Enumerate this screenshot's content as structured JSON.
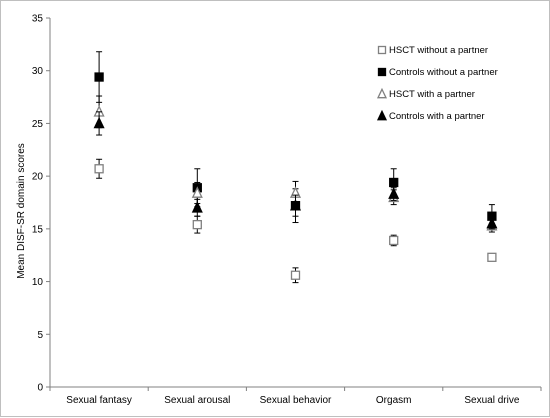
{
  "chart_data": {
    "type": "scatter",
    "title": "",
    "xlabel": "",
    "ylabel": "Mean DISF-SR domain scores",
    "ylim": [
      0,
      35
    ],
    "yticks": [
      "0",
      "5",
      "10",
      "15",
      "20",
      "25",
      "30",
      "35"
    ],
    "categories": [
      "Sexual fantasy",
      "Sexual arousal",
      "Sexual behavior",
      "Orgasm",
      "Sexual drive"
    ],
    "grid": false,
    "legend_position": "top-right",
    "series": [
      {
        "name": "HSCT without a partner",
        "marker": "open-square",
        "color": "#000000",
        "values": [
          20.7,
          15.4,
          10.6,
          13.9,
          12.3
        ],
        "errors": [
          0.9,
          0.8,
          0.7,
          0.5,
          0.3
        ]
      },
      {
        "name": "Controls without a partner",
        "marker": "filled-square",
        "color": "#000000",
        "values": [
          29.4,
          18.9,
          17.2,
          19.4,
          16.2
        ],
        "errors": [
          2.4,
          1.8,
          1.6,
          1.3,
          1.1
        ]
      },
      {
        "name": "HSCT with a partner",
        "marker": "open-triangle",
        "color": "#000000",
        "values": [
          26.1,
          18.4,
          18.4,
          18.0,
          15.3
        ],
        "errors": [
          1.5,
          1.0,
          1.1,
          0.7,
          0.6
        ]
      },
      {
        "name": "Controls with a partner",
        "marker": "filled-triangle",
        "color": "#000000",
        "values": [
          25.0,
          17.0,
          17.2,
          18.3,
          15.5
        ],
        "errors": [
          1.1,
          0.8,
          1.0,
          0.6,
          0.5
        ]
      }
    ]
  }
}
